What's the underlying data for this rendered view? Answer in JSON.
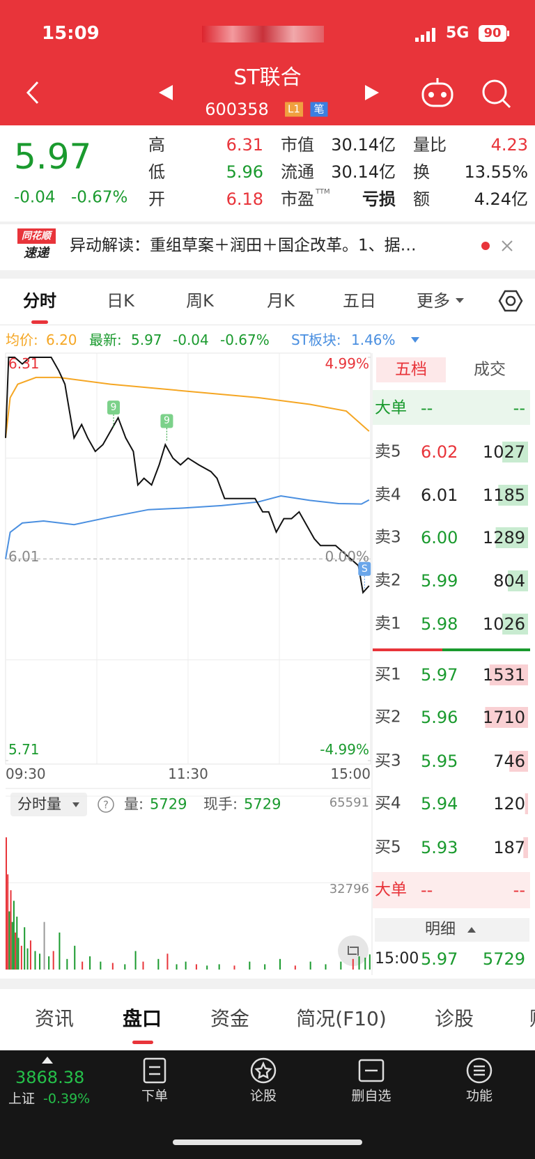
{
  "status_bar": {
    "time": "15:09",
    "network": "5G",
    "battery": "90"
  },
  "header": {
    "title": "ST联合",
    "code": "600358",
    "badges": [
      "L1",
      "笔"
    ]
  },
  "quote": {
    "price": "5.97",
    "change": "-0.04",
    "change_pct": "-0.67%",
    "fields": [
      {
        "label": "高",
        "value": "6.31",
        "color": "#e8343a"
      },
      {
        "label": "低",
        "value": "5.96",
        "color": "#1a9a2e"
      },
      {
        "label": "开",
        "value": "6.18",
        "color": "#e8343a"
      },
      {
        "label": "市值",
        "value": "30.14亿",
        "color": "#222222"
      },
      {
        "label": "流通",
        "value": "30.14亿",
        "color": "#222222"
      },
      {
        "label": "市盈",
        "sup": "TTM",
        "value": "亏损",
        "color": "#222222"
      },
      {
        "label": "量比",
        "value": "4.23",
        "color": "#e8343a"
      },
      {
        "label": "换",
        "value": "13.55%",
        "color": "#222222"
      },
      {
        "label": "额",
        "value": "4.24亿",
        "color": "#222222"
      }
    ]
  },
  "news": {
    "logo": [
      "同花顺",
      "速递"
    ],
    "text": "异动解读：重组草案＋润田＋国企改革。1、据…"
  },
  "tabs": [
    "分时",
    "日K",
    "周K",
    "月K",
    "五日",
    "更多"
  ],
  "info_line": {
    "avg_label": "均价:",
    "avg": "6.20",
    "latest_label": "最新:",
    "latest": "5.97",
    "change": "-0.04",
    "change_pct": "-0.67%",
    "sector_label": "ST板块:",
    "sector": "1.46%"
  },
  "price_chart": {
    "x_labels": [
      "09:30",
      "11:30",
      "15:00"
    ],
    "xlim": [
      0,
      240
    ],
    "yticks": [
      6.31,
      6.01,
      5.71
    ],
    "pct_ticks": [
      {
        "value": 4.99,
        "label": "4.99%"
      },
      {
        "value": 0,
        "label": "0.00%"
      },
      {
        "value": -4.99,
        "label": "-4.99%"
      }
    ],
    "price": {
      "color": "#111111",
      "x": [
        0,
        2,
        6,
        11,
        16,
        23,
        30,
        35,
        39,
        42,
        45,
        50,
        54,
        59,
        64,
        69,
        74,
        79,
        84,
        87,
        91,
        96,
        101,
        105,
        110,
        115,
        120,
        127,
        135,
        139,
        144,
        149,
        156,
        164,
        169,
        173,
        178,
        183,
        188,
        193,
        198,
        203,
        207,
        212,
        217,
        222,
        227,
        232,
        235,
        239
      ],
      "values": [
        6.19,
        6.31,
        6.31,
        6.3,
        6.31,
        6.31,
        6.31,
        6.29,
        6.27,
        6.23,
        6.19,
        6.21,
        6.19,
        6.17,
        6.18,
        6.2,
        6.22,
        6.19,
        6.17,
        6.12,
        6.13,
        6.12,
        6.15,
        6.18,
        6.16,
        6.15,
        6.16,
        6.15,
        6.14,
        6.13,
        6.1,
        6.1,
        6.1,
        6.1,
        6.08,
        6.08,
        6.05,
        6.07,
        6.07,
        6.08,
        6.06,
        6.04,
        6.03,
        6.03,
        6.03,
        6.02,
        6.01,
        6.0,
        5.96,
        5.97
      ]
    },
    "average": {
      "color": "#f5a623",
      "x": [
        0,
        3,
        8,
        20,
        35,
        69,
        117,
        166,
        200,
        224,
        239
      ],
      "values": [
        6.19,
        6.25,
        6.27,
        6.28,
        6.28,
        6.27,
        6.26,
        6.25,
        6.24,
        6.23,
        6.2
      ]
    },
    "sector": {
      "color": "#4a8fe0",
      "x": [
        0,
        3,
        11,
        25,
        45,
        69,
        94,
        117,
        142,
        166,
        181,
        200,
        219,
        234,
        239
      ],
      "values": [
        0,
        0.66,
        0.89,
        0.94,
        0.85,
        1.04,
        1.22,
        1.26,
        1.32,
        1.41,
        1.56,
        1.45,
        1.37,
        1.36,
        1.46
      ]
    },
    "markers": [
      {
        "label": "9",
        "x": 71
      },
      {
        "label": "9",
        "x": 106
      },
      {
        "label": "S",
        "x": 236
      }
    ]
  },
  "volume_chart": {
    "selector": "分时量",
    "help": "?",
    "volume_label": "量:",
    "volume": "5729",
    "hand_label": "现手:",
    "hand": "5729",
    "ylim": [
      0,
      65591
    ],
    "yticks": [
      65591,
      32796
    ],
    "palette": {
      "up": "#e8343a",
      "down": "#1a9a2e",
      "flat": "#9a9a9a"
    },
    "bars": [
      {
        "t": 0,
        "v": 50000,
        "d": "up"
      },
      {
        "t": 1,
        "v": 36000,
        "d": "up"
      },
      {
        "t": 2,
        "v": 22000,
        "d": "down"
      },
      {
        "t": 3,
        "v": 30000,
        "d": "up"
      },
      {
        "t": 4,
        "v": 18000,
        "d": "down"
      },
      {
        "t": 5,
        "v": 26000,
        "d": "down"
      },
      {
        "t": 6,
        "v": 14000,
        "d": "up"
      },
      {
        "t": 7,
        "v": 20000,
        "d": "down"
      },
      {
        "t": 8,
        "v": 12000,
        "d": "down"
      },
      {
        "t": 10,
        "v": 9000,
        "d": "up"
      },
      {
        "t": 12,
        "v": 16000,
        "d": "down"
      },
      {
        "t": 14,
        "v": 8000,
        "d": "down"
      },
      {
        "t": 16,
        "v": 11000,
        "d": "up"
      },
      {
        "t": 19,
        "v": 7000,
        "d": "down"
      },
      {
        "t": 22,
        "v": 6000,
        "d": "down"
      },
      {
        "t": 25,
        "v": 18000,
        "d": "flat"
      },
      {
        "t": 28,
        "v": 5000,
        "d": "down"
      },
      {
        "t": 31,
        "v": 7000,
        "d": "up"
      },
      {
        "t": 35,
        "v": 14000,
        "d": "down"
      },
      {
        "t": 40,
        "v": 4000,
        "d": "down"
      },
      {
        "t": 45,
        "v": 9000,
        "d": "down"
      },
      {
        "t": 50,
        "v": 3000,
        "d": "up"
      },
      {
        "t": 55,
        "v": 5000,
        "d": "down"
      },
      {
        "t": 62,
        "v": 3000,
        "d": "down"
      },
      {
        "t": 70,
        "v": 2500,
        "d": "up"
      },
      {
        "t": 78,
        "v": 2000,
        "d": "down"
      },
      {
        "t": 85,
        "v": 7000,
        "d": "down"
      },
      {
        "t": 90,
        "v": 3000,
        "d": "up"
      },
      {
        "t": 100,
        "v": 4000,
        "d": "down"
      },
      {
        "t": 106,
        "v": 6000,
        "d": "up"
      },
      {
        "t": 112,
        "v": 2000,
        "d": "down"
      },
      {
        "t": 118,
        "v": 3000,
        "d": "down"
      },
      {
        "t": 125,
        "v": 2000,
        "d": "up"
      },
      {
        "t": 132,
        "v": 1500,
        "d": "down"
      },
      {
        "t": 140,
        "v": 2000,
        "d": "down"
      },
      {
        "t": 150,
        "v": 1500,
        "d": "up"
      },
      {
        "t": 160,
        "v": 3000,
        "d": "down"
      },
      {
        "t": 170,
        "v": 2000,
        "d": "down"
      },
      {
        "t": 180,
        "v": 4000,
        "d": "down"
      },
      {
        "t": 190,
        "v": 1500,
        "d": "up"
      },
      {
        "t": 200,
        "v": 3000,
        "d": "down"
      },
      {
        "t": 210,
        "v": 2000,
        "d": "down"
      },
      {
        "t": 220,
        "v": 3000,
        "d": "down"
      },
      {
        "t": 228,
        "v": 4000,
        "d": "up"
      },
      {
        "t": 232,
        "v": 5000,
        "d": "down"
      },
      {
        "t": 236,
        "v": 4500,
        "d": "down"
      },
      {
        "t": 239,
        "v": 5729,
        "d": "down"
      }
    ]
  },
  "order_book": {
    "tabs": [
      "五档",
      "成交"
    ],
    "big": {
      "label": "大单",
      "price": "--",
      "vol": "--"
    },
    "asks": [
      {
        "label": "卖5",
        "price": "6.02",
        "vol": 1027,
        "color": "#e8343a"
      },
      {
        "label": "卖4",
        "price": "6.01",
        "vol": 1185,
        "color": "#222222"
      },
      {
        "label": "卖3",
        "price": "6.00",
        "vol": 1289,
        "color": "#1a9a2e"
      },
      {
        "label": "卖2",
        "price": "5.99",
        "vol": 804,
        "color": "#1a9a2e"
      },
      {
        "label": "卖1",
        "price": "5.98",
        "vol": 1026,
        "color": "#1a9a2e"
      }
    ],
    "bids": [
      {
        "label": "买1",
        "price": "5.97",
        "vol": 1531,
        "color": "#1a9a2e"
      },
      {
        "label": "买2",
        "price": "5.96",
        "vol": 1710,
        "color": "#1a9a2e"
      },
      {
        "label": "买3",
        "price": "5.95",
        "vol": 746,
        "color": "#1a9a2e"
      },
      {
        "label": "买4",
        "price": "5.94",
        "vol": 120,
        "color": "#1a9a2e"
      },
      {
        "label": "买5",
        "price": "5.93",
        "vol": 187,
        "color": "#1a9a2e"
      }
    ],
    "big_bottom": {
      "label": "大单",
      "price": "--",
      "vol": "--"
    },
    "detail": "明细",
    "trade": {
      "time": "15:00",
      "price": "5.97",
      "vol": 5729
    }
  },
  "bottom_tabs": [
    "资讯",
    "盘口",
    "资金",
    "简况(F10)",
    "诊股",
    "财"
  ],
  "bottom_bar": {
    "index_value": "3868.38",
    "index_name": "上证",
    "index_change": "-0.39%",
    "actions": [
      "下单",
      "论股",
      "删自选",
      "功能"
    ]
  }
}
